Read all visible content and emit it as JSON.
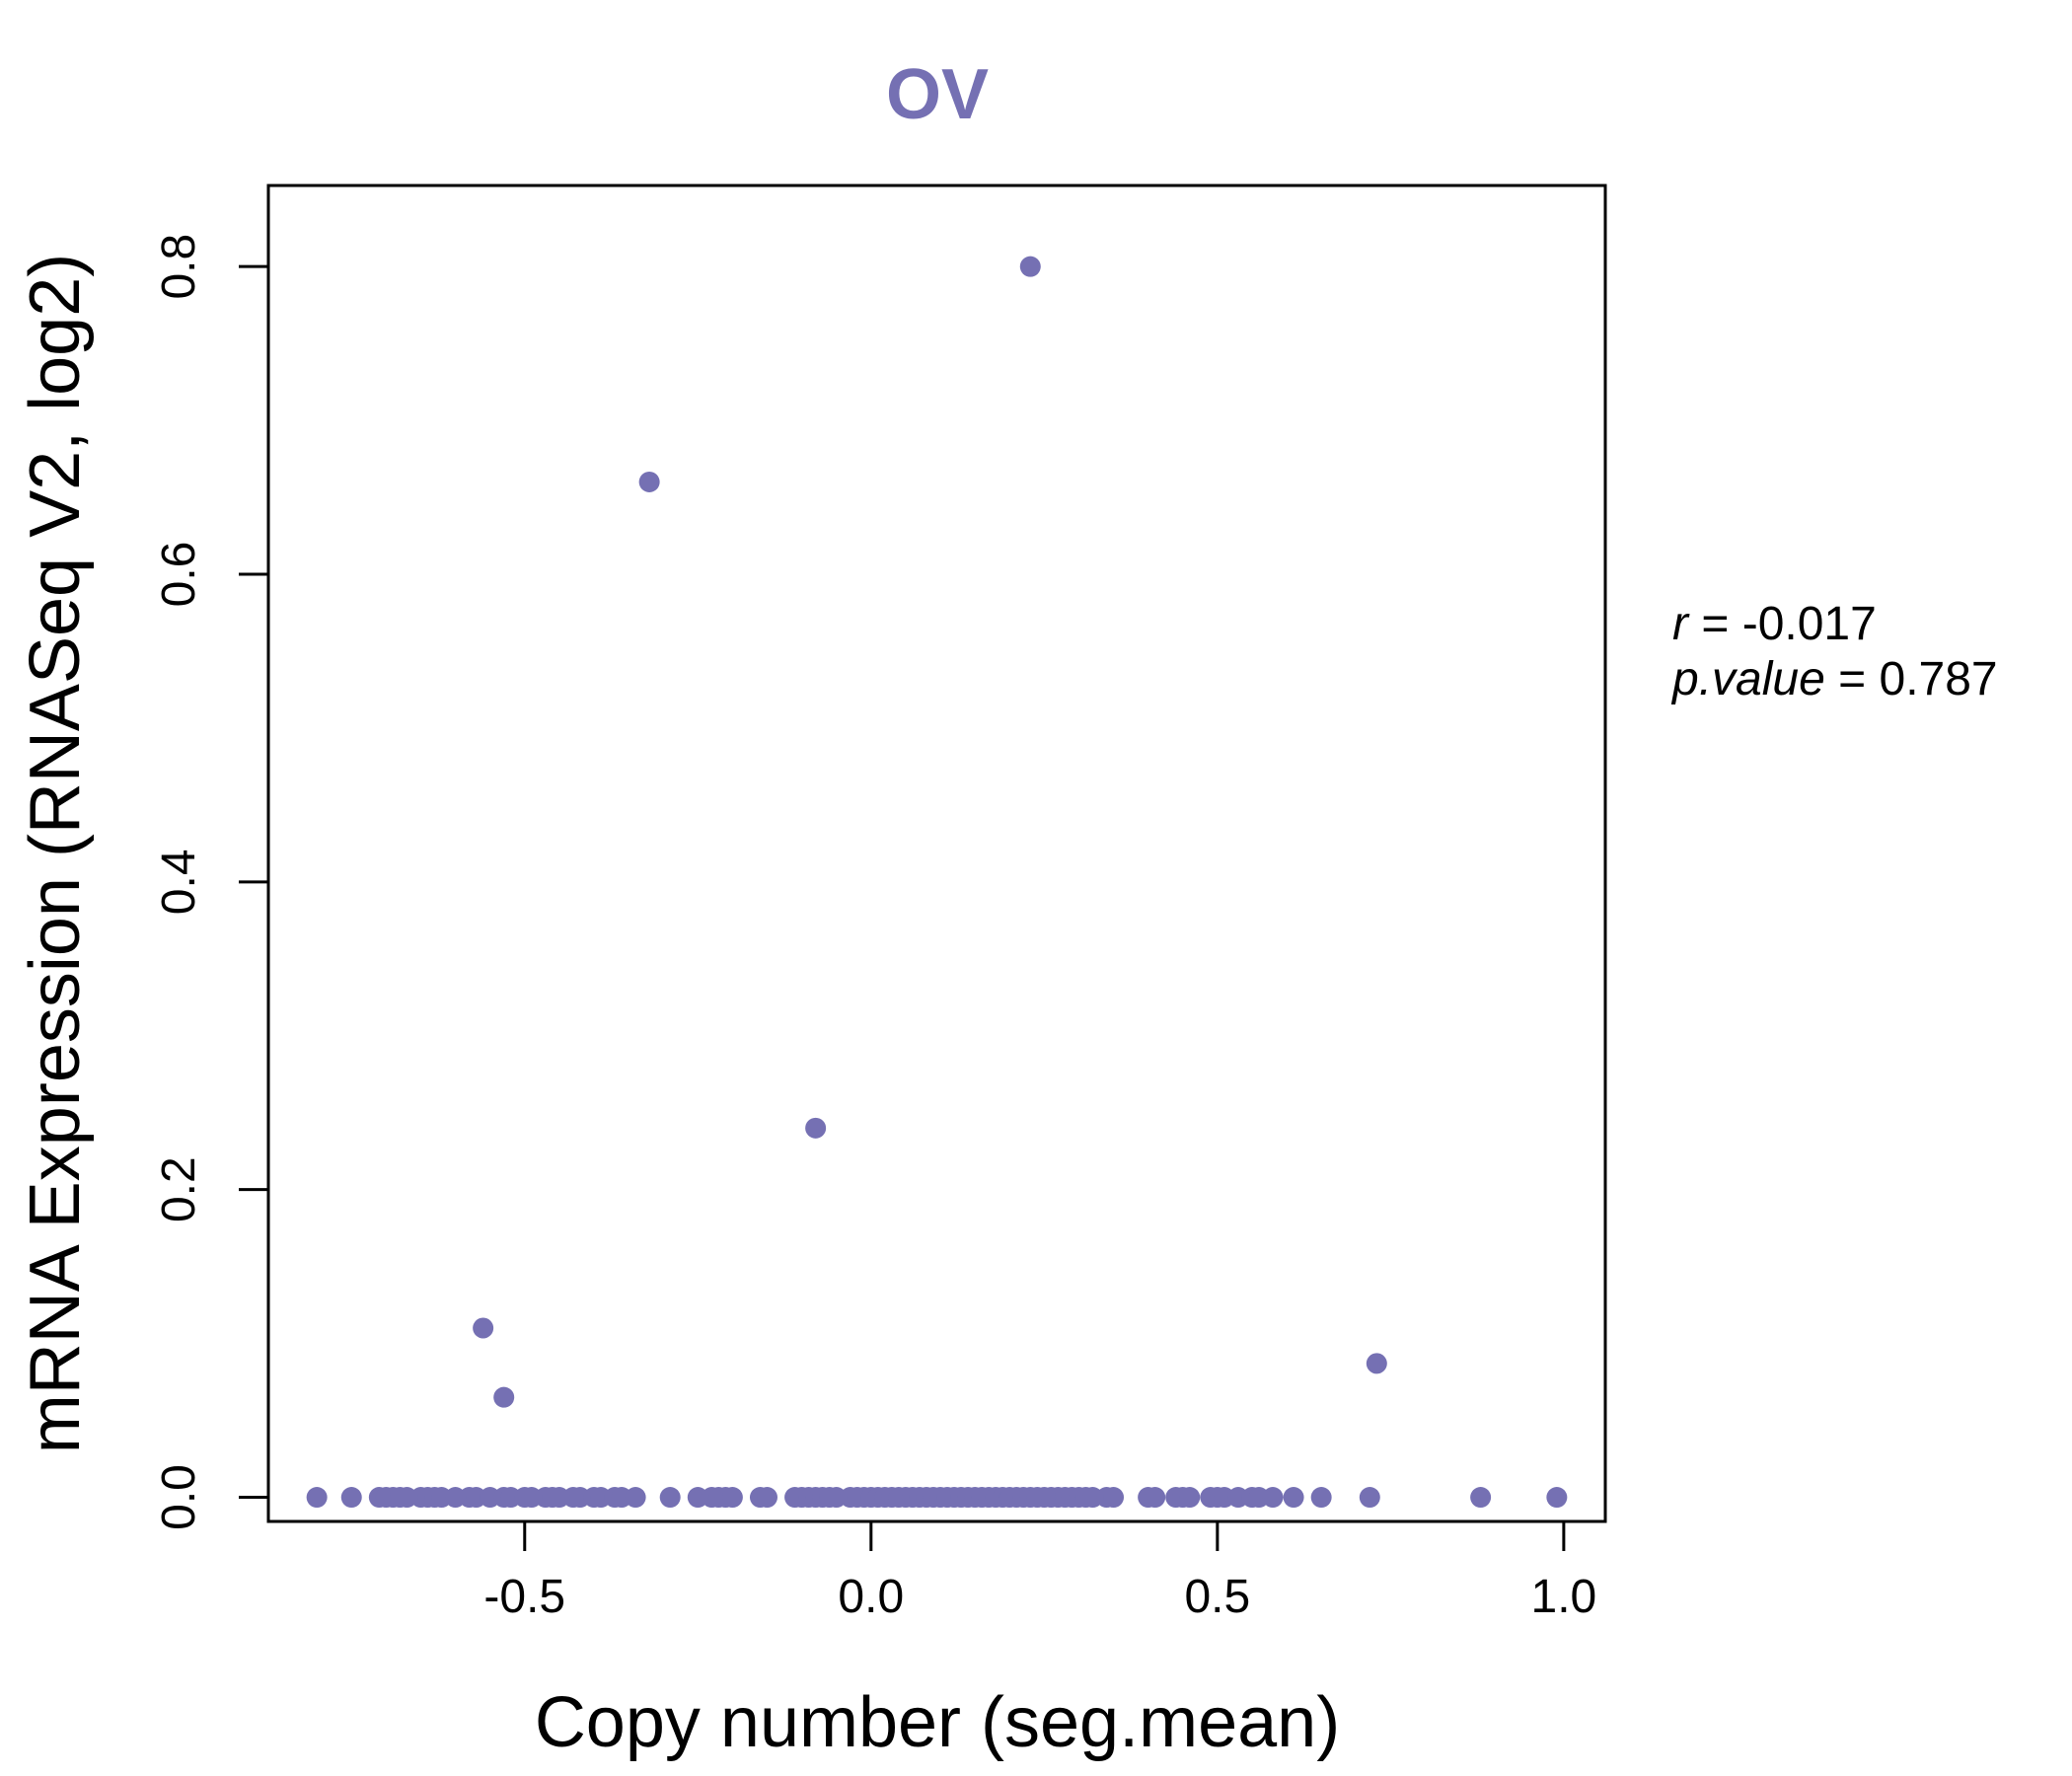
{
  "chart_data": {
    "type": "scatter",
    "title": "OV",
    "xlabel": "Copy number (seg.mean)",
    "ylabel": "mRNA Expression (RNASeq V2, log2)",
    "xlim": [
      -0.87,
      1.06
    ],
    "ylim": [
      -0.0157,
      0.8527
    ],
    "xticks": [
      -0.5,
      0.0,
      0.5,
      1.0
    ],
    "xtick_labels": [
      "-0.5",
      "0.0",
      "0.5",
      "1.0"
    ],
    "yticks": [
      0.0,
      0.2,
      0.4,
      0.6,
      0.8
    ],
    "ytick_labels": [
      "0.0",
      "0.2",
      "0.4",
      "0.6",
      "0.8"
    ],
    "grid": false,
    "point_color": "#7570b3",
    "annotations": {
      "r_label": "r",
      "r_value": "-0.017",
      "p_label": "p.value",
      "p_value": "0.787"
    },
    "x": [
      0.23,
      -0.32,
      -0.08,
      -0.56,
      -0.53,
      0.73,
      -0.8,
      -0.75,
      -0.71,
      -0.7,
      -0.69,
      -0.68,
      -0.67,
      -0.65,
      -0.64,
      -0.63,
      -0.62,
      -0.6,
      -0.58,
      -0.57,
      -0.55,
      -0.53,
      -0.52,
      -0.5,
      -0.49,
      -0.47,
      -0.46,
      -0.45,
      -0.43,
      -0.42,
      -0.4,
      -0.39,
      -0.37,
      -0.36,
      -0.34,
      -0.29,
      -0.25,
      -0.23,
      -0.22,
      -0.21,
      -0.2,
      -0.16,
      -0.15,
      -0.11,
      -0.1,
      -0.09,
      -0.08,
      -0.07,
      -0.06,
      -0.05,
      -0.03,
      -0.02,
      -0.01,
      0.0,
      0.01,
      0.02,
      0.03,
      0.04,
      0.05,
      0.06,
      0.07,
      0.08,
      0.09,
      0.1,
      0.11,
      0.12,
      0.13,
      0.14,
      0.15,
      0.16,
      0.17,
      0.18,
      0.19,
      0.2,
      0.21,
      0.22,
      0.23,
      0.24,
      0.25,
      0.26,
      0.27,
      0.28,
      0.29,
      0.3,
      0.31,
      0.32,
      0.34,
      0.35,
      0.4,
      0.41,
      0.44,
      0.45,
      0.46,
      0.49,
      0.5,
      0.51,
      0.53,
      0.55,
      0.56,
      0.58,
      0.61,
      0.65,
      0.72,
      0.88,
      0.99
    ],
    "y": [
      0.8,
      0.66,
      0.24,
      0.11,
      0.065,
      0.087,
      0,
      0,
      0,
      0,
      0,
      0,
      0,
      0,
      0,
      0,
      0,
      0,
      0,
      0,
      0,
      0,
      0,
      0,
      0,
      0,
      0,
      0,
      0,
      0,
      0,
      0,
      0,
      0,
      0,
      0,
      0,
      0,
      0,
      0,
      0,
      0,
      0,
      0,
      0,
      0,
      0,
      0,
      0,
      0,
      0,
      0,
      0,
      0,
      0,
      0,
      0,
      0,
      0,
      0,
      0,
      0,
      0,
      0,
      0,
      0,
      0,
      0,
      0,
      0,
      0,
      0,
      0,
      0,
      0,
      0,
      0,
      0,
      0,
      0,
      0,
      0,
      0,
      0,
      0,
      0,
      0,
      0,
      0,
      0,
      0,
      0,
      0,
      0,
      0,
      0,
      0,
      0,
      0,
      0,
      0,
      0,
      0,
      0,
      0
    ]
  }
}
